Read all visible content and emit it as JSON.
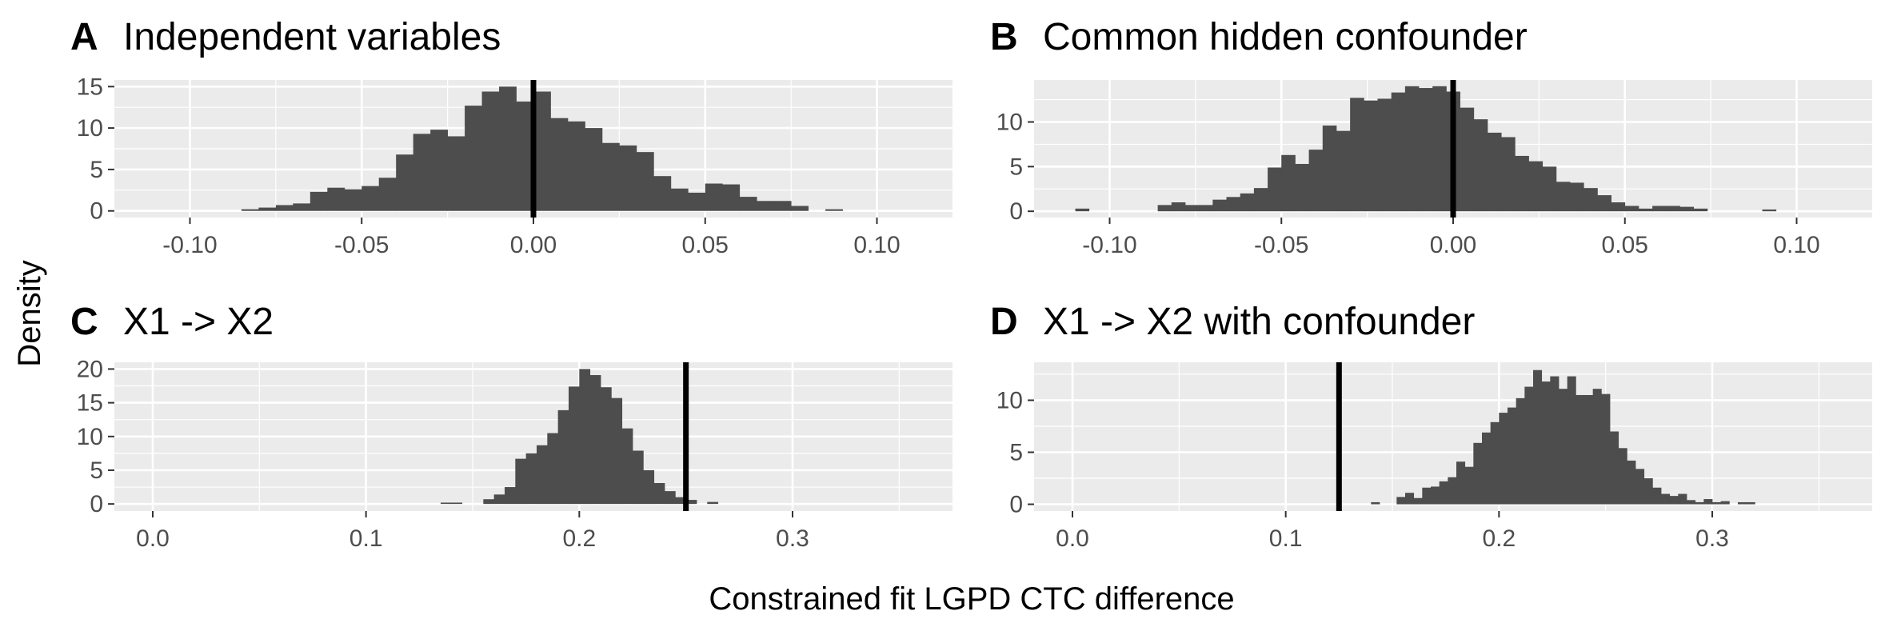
{
  "figure": {
    "ylabel": "Density",
    "xlabel": "Constrained fit LGPD CTC difference"
  },
  "colors": {
    "panel_background": "#ebebeb",
    "grid_line": "#ffffff",
    "bar_fill": "#4d4d4d",
    "reference_line": "#000000",
    "tick_text": "#4d4d4d"
  },
  "chart_data": [
    {
      "type": "bar",
      "letter": "A",
      "title": "Independent variables",
      "xlim": [
        -0.122,
        0.122
      ],
      "ylim": [
        -0.8,
        15.8
      ],
      "xticks": [
        -0.1,
        -0.05,
        0.0,
        0.05,
        0.1
      ],
      "xtick_labels": [
        "-0.10",
        "-0.05",
        "0.00",
        "0.05",
        "0.10"
      ],
      "yticks": [
        0,
        5,
        10,
        15
      ],
      "ytick_labels": [
        "0",
        "5",
        "10",
        "15"
      ],
      "vline": 0.0,
      "bin_start": -0.085,
      "bin_width": 0.005,
      "values": [
        0.2,
        0.4,
        0.7,
        0.9,
        2.3,
        2.8,
        2.6,
        3.0,
        4.0,
        6.8,
        9.3,
        9.8,
        9.0,
        12.7,
        14.4,
        15.0,
        13.2,
        14.4,
        11.2,
        10.8,
        10.0,
        8.2,
        7.9,
        7.1,
        4.2,
        2.7,
        2.2,
        3.3,
        3.2,
        1.7,
        1.2,
        1.2,
        0.6,
        0.0,
        0.2
      ]
    },
    {
      "type": "bar",
      "letter": "B",
      "title": "Common hidden confounder",
      "xlim": [
        -0.122,
        0.122
      ],
      "ylim": [
        -0.7,
        14.7
      ],
      "xticks": [
        -0.1,
        -0.05,
        0.0,
        0.05,
        0.1
      ],
      "xtick_labels": [
        "-0.10",
        "-0.05",
        "0.00",
        "0.05",
        "0.10"
      ],
      "yticks": [
        0,
        5,
        10
      ],
      "ytick_labels": [
        "0",
        "5",
        "10"
      ],
      "vline": 0.0,
      "bin_start": -0.11,
      "bin_width": 0.004,
      "values": [
        0.3,
        0.0,
        0.0,
        0.0,
        0.0,
        0.0,
        0.7,
        1.0,
        0.7,
        0.7,
        1.3,
        1.6,
        2.0,
        2.6,
        4.9,
        6.3,
        5.3,
        6.9,
        9.6,
        9.0,
        12.7,
        12.4,
        12.6,
        13.3,
        14.0,
        13.8,
        14.0,
        13.4,
        11.6,
        10.3,
        8.8,
        8.3,
        6.2,
        5.6,
        5.0,
        3.3,
        3.2,
        2.6,
        1.8,
        1.0,
        0.6,
        0.3,
        0.6,
        0.6,
        0.5,
        0.3,
        0.0,
        0.0,
        0.0,
        0.0,
        0.2
      ]
    },
    {
      "type": "bar",
      "letter": "C",
      "title": "X1 -> X2",
      "xlim": [
        -0.018,
        0.375
      ],
      "ylim": [
        -1.05,
        21.0
      ],
      "xticks": [
        0.0,
        0.1,
        0.2,
        0.3
      ],
      "xtick_labels": [
        "0.0",
        "0.1",
        "0.2",
        "0.3"
      ],
      "minor_xticks": [
        0.05,
        0.15,
        0.25,
        0.35
      ],
      "yticks": [
        0,
        5,
        10,
        15,
        20
      ],
      "ytick_labels": [
        "0",
        "5",
        "10",
        "15",
        "20"
      ],
      "vline": 0.25,
      "bin_start": 0.135,
      "bin_width": 0.005,
      "values": [
        0.2,
        0.2,
        0.0,
        0.0,
        0.7,
        1.4,
        2.5,
        6.7,
        7.5,
        8.7,
        10.5,
        13.9,
        17.4,
        20.0,
        19.1,
        17.3,
        15.7,
        11.2,
        7.9,
        5.0,
        3.1,
        1.9,
        1.0,
        0.6,
        0.0,
        0.3
      ]
    },
    {
      "type": "bar",
      "letter": "D",
      "title": "X1 -> X2 with confounder",
      "xlim": [
        -0.018,
        0.375
      ],
      "ylim": [
        -0.65,
        13.65
      ],
      "xticks": [
        0.0,
        0.1,
        0.2,
        0.3
      ],
      "xtick_labels": [
        "0.0",
        "0.1",
        "0.2",
        "0.3"
      ],
      "minor_xticks": [
        0.05,
        0.15,
        0.25,
        0.35
      ],
      "yticks": [
        0,
        5,
        10
      ],
      "ytick_labels": [
        "0",
        "5",
        "10"
      ],
      "vline": 0.125,
      "bin_start": 0.14,
      "bin_width": 0.004,
      "values": [
        0.2,
        0.0,
        0.0,
        0.7,
        1.1,
        0.6,
        1.6,
        1.7,
        2.2,
        2.6,
        4.1,
        3.6,
        5.9,
        6.9,
        7.9,
        8.8,
        9.3,
        10.2,
        11.3,
        12.9,
        11.8,
        12.3,
        11.1,
        12.3,
        10.5,
        10.5,
        11.1,
        10.6,
        7.0,
        5.4,
        4.2,
        3.4,
        2.5,
        1.6,
        1.0,
        0.8,
        1.0,
        0.4,
        0.2,
        0.5,
        0.2,
        0.3,
        0.0,
        0.2,
        0.2
      ]
    }
  ]
}
